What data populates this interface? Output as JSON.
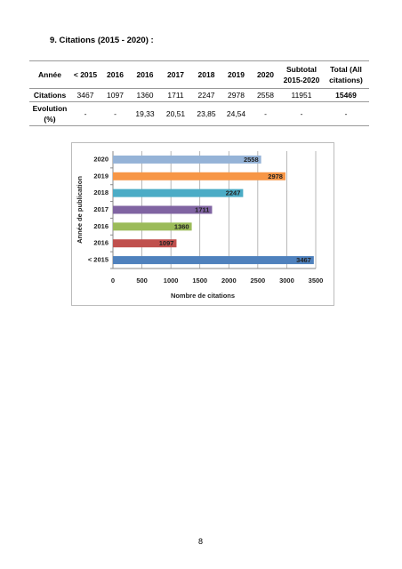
{
  "heading": "9.   Citations (2015 - 2020) :",
  "table": {
    "header": [
      "Année",
      "< 2015",
      "2016",
      "2016",
      "2017",
      "2018",
      "2019",
      "2020",
      "Subtotal 2015-2020",
      "Total (All citations)"
    ],
    "rows": [
      [
        "Citations",
        "3467",
        "1097",
        "1360",
        "1711",
        "2247",
        "2978",
        "2558",
        "11951",
        "15469"
      ],
      [
        "Evolution (%)",
        "-",
        "-",
        "19,33",
        "20,51",
        "23,85",
        "24,54",
        "-",
        "-",
        "-"
      ]
    ]
  },
  "chart_data": {
    "type": "hbar",
    "categories": [
      "< 2015",
      "2016",
      "2016",
      "2017",
      "2018",
      "2019",
      "2020"
    ],
    "values": [
      3467,
      1097,
      1360,
      1711,
      2247,
      2978,
      2558
    ],
    "colors": [
      "#4f81bd",
      "#c0504d",
      "#9bbb59",
      "#8064a2",
      "#4bacc6",
      "#f79646",
      "#95b3d7"
    ],
    "xlim": [
      0,
      3500
    ],
    "xticks": [
      0,
      500,
      1000,
      1500,
      2000,
      2500,
      3000,
      3500
    ],
    "xlabel": "Nombre de citations",
    "ylabel": "Année de publication",
    "grid": true
  },
  "page_number": "8"
}
